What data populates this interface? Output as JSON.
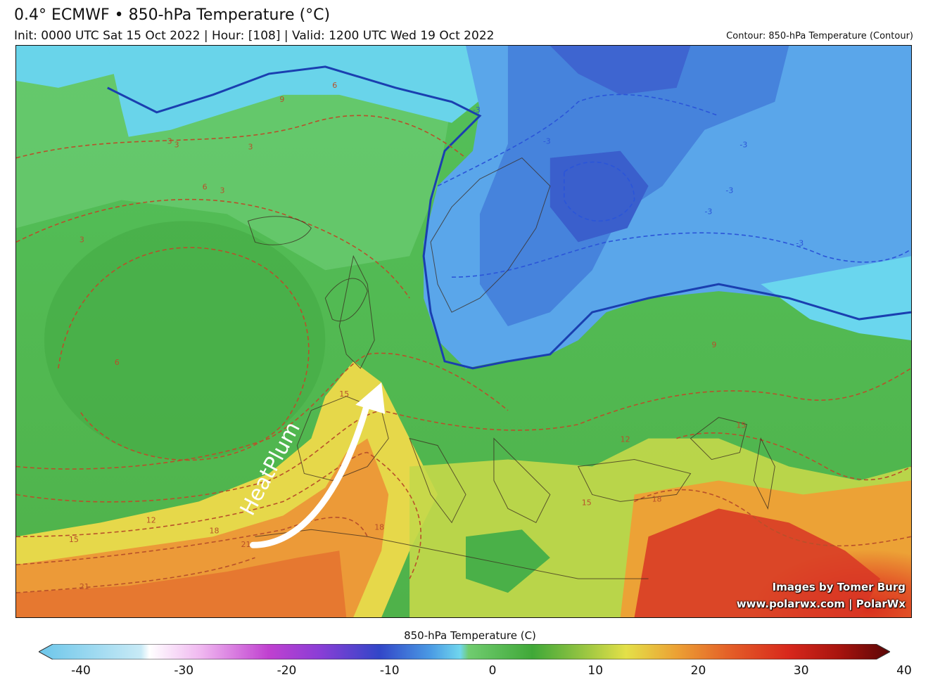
{
  "header": {
    "title": "0.4° ECMWF • 850-hPa Temperature (°C)",
    "subtitle": "Init: 0000 UTC Sat 15 Oct 2022 | Hour: [108] | Valid: 1200 UTC Wed 19 Oct 2022",
    "contour_label": "Contour: 850-hPa Temperature (Contour)"
  },
  "map": {
    "annotation_text": "HeatPlum",
    "contour_labels": [
      "-3",
      "-3",
      "-3",
      "-3",
      "-3",
      "-3",
      "3",
      "3",
      "3",
      "3",
      "3",
      "6",
      "6",
      "6",
      "9",
      "9",
      "12",
      "12",
      "15",
      "15",
      "15",
      "15",
      "18",
      "18",
      "18",
      "21",
      "21"
    ],
    "credit_line1": "Images by Tomer Burg",
    "credit_line2": "www.polarwx.com | PolarWx"
  },
  "colorbar": {
    "title": "850-hPa Temperature (C)",
    "ticks": [
      "-40",
      "-30",
      "-20",
      "-10",
      "0",
      "10",
      "20",
      "30",
      "40"
    ],
    "min": -40,
    "max": 40
  },
  "colors": {
    "cold_blue": "#3f6fd8",
    "cool_cyan": "#62d6ec",
    "mild_green": "#4cb84c",
    "warm_yellow": "#e6d84a",
    "hot_orange": "#ec8a32",
    "hot_red": "#d83624"
  }
}
